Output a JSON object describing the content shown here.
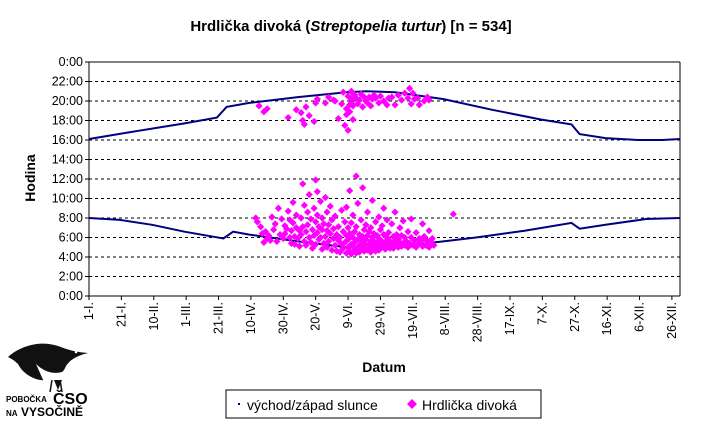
{
  "chart_data": {
    "type": "scatter",
    "title_main": "Hrdlička divoká (",
    "title_italic": "Streptopelia turtur",
    "title_end": ") [n = 534]",
    "xlabel": "Datum",
    "ylabel": "Hodina",
    "y_ticks": [
      "0:00",
      "22:00",
      "20:00",
      "18:00",
      "16:00",
      "14:00",
      "12:00",
      "10:00",
      "8:00",
      "6:00",
      "4:00",
      "2:00",
      "0:00"
    ],
    "x_ticks": [
      "1-I.",
      "21-I.",
      "10-II.",
      "1-III.",
      "21-III.",
      "10-IV.",
      "30-IV.",
      "20-V.",
      "9-VI.",
      "29-VI.",
      "19-VII.",
      "8-VIII.",
      "28-VIII.",
      "17-IX.",
      "7-X.",
      "27-X.",
      "16-XI.",
      "6-XII.",
      "26-XII."
    ],
    "xlim": [
      1,
      366
    ],
    "ylim": [
      0,
      24
    ],
    "grid": true,
    "legend_placement": "bottom",
    "series": [
      {
        "name": "východ/západ slunce",
        "color": "#000080",
        "sunset": [
          [
            1,
            16.1
          ],
          [
            30,
            16.9
          ],
          [
            60,
            17.7
          ],
          [
            80,
            18.3
          ],
          [
            86,
            19.4
          ],
          [
            100,
            19.8
          ],
          [
            130,
            20.4
          ],
          [
            160,
            20.9
          ],
          [
            172,
            21.0
          ],
          [
            190,
            20.9
          ],
          [
            220,
            20.2
          ],
          [
            250,
            19.1
          ],
          [
            280,
            18.1
          ],
          [
            299,
            17.6
          ],
          [
            304,
            16.6
          ],
          [
            320,
            16.2
          ],
          [
            340,
            16.0
          ],
          [
            355,
            16.0
          ],
          [
            366,
            16.1
          ]
        ],
        "sunrise": [
          [
            1,
            8.0
          ],
          [
            20,
            7.8
          ],
          [
            40,
            7.3
          ],
          [
            60,
            6.6
          ],
          [
            84,
            5.9
          ],
          [
            90,
            6.6
          ],
          [
            100,
            6.3
          ],
          [
            130,
            5.6
          ],
          [
            160,
            5.0
          ],
          [
            172,
            4.9
          ],
          [
            190,
            5.0
          ],
          [
            210,
            5.4
          ],
          [
            240,
            6.0
          ],
          [
            270,
            6.7
          ],
          [
            299,
            7.5
          ],
          [
            304,
            6.9
          ],
          [
            320,
            7.3
          ],
          [
            345,
            7.9
          ],
          [
            366,
            8.0
          ]
        ]
      },
      {
        "name": "Hrdlička divoká",
        "color": "#ff00ff",
        "points": [
          [
            106,
            19.5
          ],
          [
            109,
            18.9
          ],
          [
            111,
            19.2
          ],
          [
            124,
            18.3
          ],
          [
            129,
            19.1
          ],
          [
            132,
            18.8
          ],
          [
            133,
            18.0
          ],
          [
            134,
            17.6
          ],
          [
            135,
            19.4
          ],
          [
            137,
            18.5
          ],
          [
            140,
            17.9
          ],
          [
            141,
            19.8
          ],
          [
            142,
            20.2
          ],
          [
            147,
            19.8
          ],
          [
            149,
            20.4
          ],
          [
            152,
            20.1
          ],
          [
            153,
            20.0
          ],
          [
            155,
            18.2
          ],
          [
            157,
            19.7
          ],
          [
            158,
            20.9
          ],
          [
            159,
            17.5
          ],
          [
            160,
            18.6
          ],
          [
            160,
            19.2
          ],
          [
            161,
            20.5
          ],
          [
            161,
            17.0
          ],
          [
            162,
            19.6
          ],
          [
            162,
            18.9
          ],
          [
            163,
            21.0
          ],
          [
            163,
            20.2
          ],
          [
            163,
            19.8
          ],
          [
            164,
            20.8
          ],
          [
            164,
            19.5
          ],
          [
            164,
            18.1
          ],
          [
            165,
            20.6
          ],
          [
            166,
            20.3
          ],
          [
            167,
            19.7
          ],
          [
            168,
            20.1
          ],
          [
            169,
            20.7
          ],
          [
            170,
            19.4
          ],
          [
            171,
            20.4
          ],
          [
            172,
            20.0
          ],
          [
            173,
            19.8
          ],
          [
            174,
            20.4
          ],
          [
            175,
            19.5
          ],
          [
            176,
            20.2
          ],
          [
            177,
            20.6
          ],
          [
            178,
            20.3
          ],
          [
            180,
            19.8
          ],
          [
            181,
            20.5
          ],
          [
            183,
            20.0
          ],
          [
            185,
            19.6
          ],
          [
            186,
            20.3
          ],
          [
            188,
            20.4
          ],
          [
            190,
            19.6
          ],
          [
            192,
            20.6
          ],
          [
            194,
            20.1
          ],
          [
            196,
            20.8
          ],
          [
            198,
            20.3
          ],
          [
            199,
            21.3
          ],
          [
            200,
            19.7
          ],
          [
            201,
            20.8
          ],
          [
            202,
            20.2
          ],
          [
            204,
            20.3
          ],
          [
            205,
            19.6
          ],
          [
            208,
            20.0
          ],
          [
            210,
            20.4
          ],
          [
            211,
            20.1
          ],
          [
            104,
            8.0
          ],
          [
            105,
            7.6
          ],
          [
            107,
            7.1
          ],
          [
            108,
            6.4
          ],
          [
            109,
            5.5
          ],
          [
            110,
            6.6
          ],
          [
            111,
            5.9
          ],
          [
            112,
            6.2
          ],
          [
            113,
            5.7
          ],
          [
            114,
            8.1
          ],
          [
            115,
            6.8
          ],
          [
            116,
            7.4
          ],
          [
            117,
            5.6
          ],
          [
            118,
            9.0
          ],
          [
            119,
            6.3
          ],
          [
            120,
            7.9
          ],
          [
            121,
            5.9
          ],
          [
            122,
            6.4
          ],
          [
            122,
            7.2
          ],
          [
            123,
            6.9
          ],
          [
            124,
            8.7
          ],
          [
            125,
            7.8
          ],
          [
            125,
            6.0
          ],
          [
            126,
            5.4
          ],
          [
            126,
            6.7
          ],
          [
            127,
            9.6
          ],
          [
            127,
            7.5
          ],
          [
            128,
            5.3
          ],
          [
            128,
            6.1
          ],
          [
            129,
            7.0
          ],
          [
            129,
            8.3
          ],
          [
            130,
            5.9
          ],
          [
            131,
            6.7
          ],
          [
            131,
            5.1
          ],
          [
            132,
            8.0
          ],
          [
            132,
            6.3
          ],
          [
            133,
            11.5
          ],
          [
            133,
            7.1
          ],
          [
            134,
            5.6
          ],
          [
            134,
            9.3
          ],
          [
            135,
            6.6
          ],
          [
            135,
            5.2
          ],
          [
            136,
            8.6
          ],
          [
            136,
            7.3
          ],
          [
            137,
            6.0
          ],
          [
            137,
            10.4
          ],
          [
            138,
            5.5
          ],
          [
            138,
            7.9
          ],
          [
            139,
            6.8
          ],
          [
            139,
            4.9
          ],
          [
            140,
            9.0
          ],
          [
            140,
            6.2
          ],
          [
            141,
            11.9
          ],
          [
            141,
            7.6
          ],
          [
            141,
            5.3
          ],
          [
            142,
            8.3
          ],
          [
            142,
            6.5
          ],
          [
            142,
            10.7
          ],
          [
            143,
            5.8
          ],
          [
            143,
            7.1
          ],
          [
            144,
            9.7
          ],
          [
            144,
            6.0
          ],
          [
            145,
            4.8
          ],
          [
            145,
            8.0
          ],
          [
            145,
            6.8
          ],
          [
            146,
            5.4
          ],
          [
            146,
            7.4
          ],
          [
            147,
            10.1
          ],
          [
            147,
            6.1
          ],
          [
            148,
            5.0
          ],
          [
            148,
            8.6
          ],
          [
            148,
            6.7
          ],
          [
            149,
            7.3
          ],
          [
            149,
            5.6
          ],
          [
            150,
            9.2
          ],
          [
            150,
            6.4
          ],
          [
            151,
            4.7
          ],
          [
            151,
            7.8
          ],
          [
            152,
            5.9
          ],
          [
            152,
            6.9
          ],
          [
            153,
            8.2
          ],
          [
            153,
            5.2
          ],
          [
            154,
            6.3
          ],
          [
            154,
            4.6
          ],
          [
            155,
            7.1
          ],
          [
            155,
            5.7
          ],
          [
            156,
            6.0
          ],
          [
            156,
            4.5
          ],
          [
            157,
            8.8
          ],
          [
            157,
            5.3
          ],
          [
            158,
            6.6
          ],
          [
            158,
            4.9
          ],
          [
            159,
            7.6
          ],
          [
            159,
            5.5
          ],
          [
            160,
            6.2
          ],
          [
            160,
            4.4
          ],
          [
            160,
            9.1
          ],
          [
            161,
            5.0
          ],
          [
            161,
            7.0
          ],
          [
            161,
            5.8
          ],
          [
            162,
            6.4
          ],
          [
            162,
            4.6
          ],
          [
            162,
            10.8
          ],
          [
            163,
            5.3
          ],
          [
            163,
            7.5
          ],
          [
            163,
            4.3
          ],
          [
            164,
            6.0
          ],
          [
            164,
            5.1
          ],
          [
            164,
            8.3
          ],
          [
            165,
            4.7
          ],
          [
            165,
            6.6
          ],
          [
            165,
            5.5
          ],
          [
            166,
            4.4
          ],
          [
            166,
            7.1
          ],
          [
            166,
            12.3
          ],
          [
            167,
            5.8
          ],
          [
            167,
            4.9
          ],
          [
            167,
            9.5
          ],
          [
            168,
            6.3
          ],
          [
            168,
            5.2
          ],
          [
            168,
            4.5
          ],
          [
            169,
            7.8
          ],
          [
            169,
            5.7
          ],
          [
            169,
            4.8
          ],
          [
            170,
            6.1
          ],
          [
            170,
            5.0
          ],
          [
            170,
            11.1
          ],
          [
            171,
            4.6
          ],
          [
            171,
            6.8
          ],
          [
            171,
            5.4
          ],
          [
            172,
            4.9
          ],
          [
            172,
            7.3
          ],
          [
            172,
            5.8
          ],
          [
            173,
            6.2
          ],
          [
            173,
            4.7
          ],
          [
            173,
            8.6
          ],
          [
            174,
            5.3
          ],
          [
            174,
            6.6
          ],
          [
            174,
            4.8
          ],
          [
            175,
            5.6
          ],
          [
            175,
            7.0
          ],
          [
            175,
            4.5
          ],
          [
            176,
            6.0
          ],
          [
            176,
            5.1
          ],
          [
            176,
            9.8
          ],
          [
            177,
            4.8
          ],
          [
            177,
            6.4
          ],
          [
            177,
            5.6
          ],
          [
            178,
            7.6
          ],
          [
            178,
            5.0
          ],
          [
            178,
            4.6
          ],
          [
            179,
            6.2
          ],
          [
            179,
            5.4
          ],
          [
            180,
            5.9
          ],
          [
            180,
            4.7
          ],
          [
            180,
            8.1
          ],
          [
            181,
            5.2
          ],
          [
            181,
            6.8
          ],
          [
            181,
            4.9
          ],
          [
            182,
            5.6
          ],
          [
            182,
            7.2
          ],
          [
            183,
            5.0
          ],
          [
            183,
            6.3
          ],
          [
            183,
            9.0
          ],
          [
            184,
            5.4
          ],
          [
            184,
            4.8
          ],
          [
            185,
            6.0
          ],
          [
            185,
            5.7
          ],
          [
            185,
            7.8
          ],
          [
            186,
            5.1
          ],
          [
            186,
            6.5
          ],
          [
            187,
            4.9
          ],
          [
            187,
            5.6
          ],
          [
            188,
            7.4
          ],
          [
            188,
            5.3
          ],
          [
            189,
            6.1
          ],
          [
            189,
            4.9
          ],
          [
            190,
            5.7
          ],
          [
            190,
            8.6
          ],
          [
            191,
            5.2
          ],
          [
            191,
            6.3
          ],
          [
            192,
            5.8
          ],
          [
            192,
            5.0
          ],
          [
            193,
            7.0
          ],
          [
            193,
            5.5
          ],
          [
            194,
            6.2
          ],
          [
            194,
            5.1
          ],
          [
            195,
            5.4
          ],
          [
            195,
            7.7
          ],
          [
            196,
            6.0
          ],
          [
            196,
            5.2
          ],
          [
            197,
            5.6
          ],
          [
            198,
            6.6
          ],
          [
            198,
            5.0
          ],
          [
            199,
            5.4
          ],
          [
            200,
            7.9
          ],
          [
            200,
            6.0
          ],
          [
            201,
            5.2
          ],
          [
            202,
            5.7
          ],
          [
            203,
            6.5
          ],
          [
            203,
            5.0
          ],
          [
            204,
            5.3
          ],
          [
            205,
            5.9
          ],
          [
            206,
            5.6
          ],
          [
            207,
            5.1
          ],
          [
            207,
            7.4
          ],
          [
            208,
            6.1
          ],
          [
            209,
            5.2
          ],
          [
            209,
            5.8
          ],
          [
            210,
            5.4
          ],
          [
            211,
            6.7
          ],
          [
            211,
            5.0
          ],
          [
            212,
            5.6
          ],
          [
            213,
            5.9
          ],
          [
            214,
            5.2
          ],
          [
            226,
            8.4
          ]
        ]
      }
    ]
  },
  "logo": {
    "line1": "POBOČKA",
    "line2": "NA",
    "big1": "ČSO",
    "big2": "VYSOČINĚ"
  }
}
